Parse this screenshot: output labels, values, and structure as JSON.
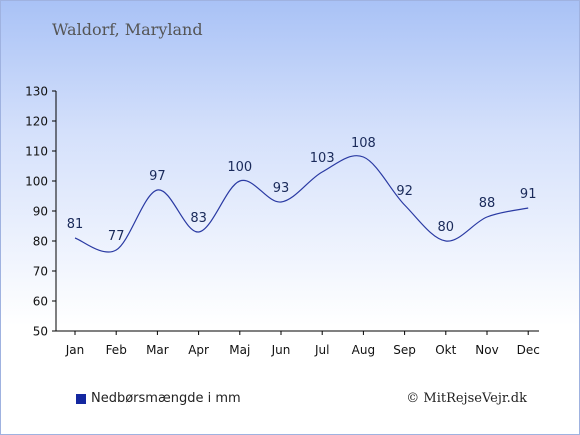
{
  "chart_title": "Waldorf, Maryland",
  "copyright": "© MitRejseVejr.dk",
  "colors": {
    "line": "#2a3aa3",
    "axis": "#000000",
    "label": "#1a2a5a",
    "legend_swatch": "#1428a0"
  },
  "chart_data": {
    "type": "line",
    "title": "Waldorf, Maryland",
    "xlabel": "",
    "ylabel": "",
    "categories": [
      "Jan",
      "Feb",
      "Mar",
      "Apr",
      "Maj",
      "Jun",
      "Jul",
      "Aug",
      "Sep",
      "Okt",
      "Nov",
      "Dec"
    ],
    "series": [
      {
        "name": "Nedbørsmængde i mm",
        "values": [
          81,
          77,
          97,
          83,
          100,
          93,
          103,
          108,
          92,
          80,
          88,
          91
        ]
      }
    ],
    "ylim": [
      50,
      130
    ],
    "yticks": [
      50,
      60,
      70,
      80,
      90,
      100,
      110,
      120,
      130
    ],
    "grid": false,
    "legend_position": "bottom-left",
    "data_labels": true
  }
}
